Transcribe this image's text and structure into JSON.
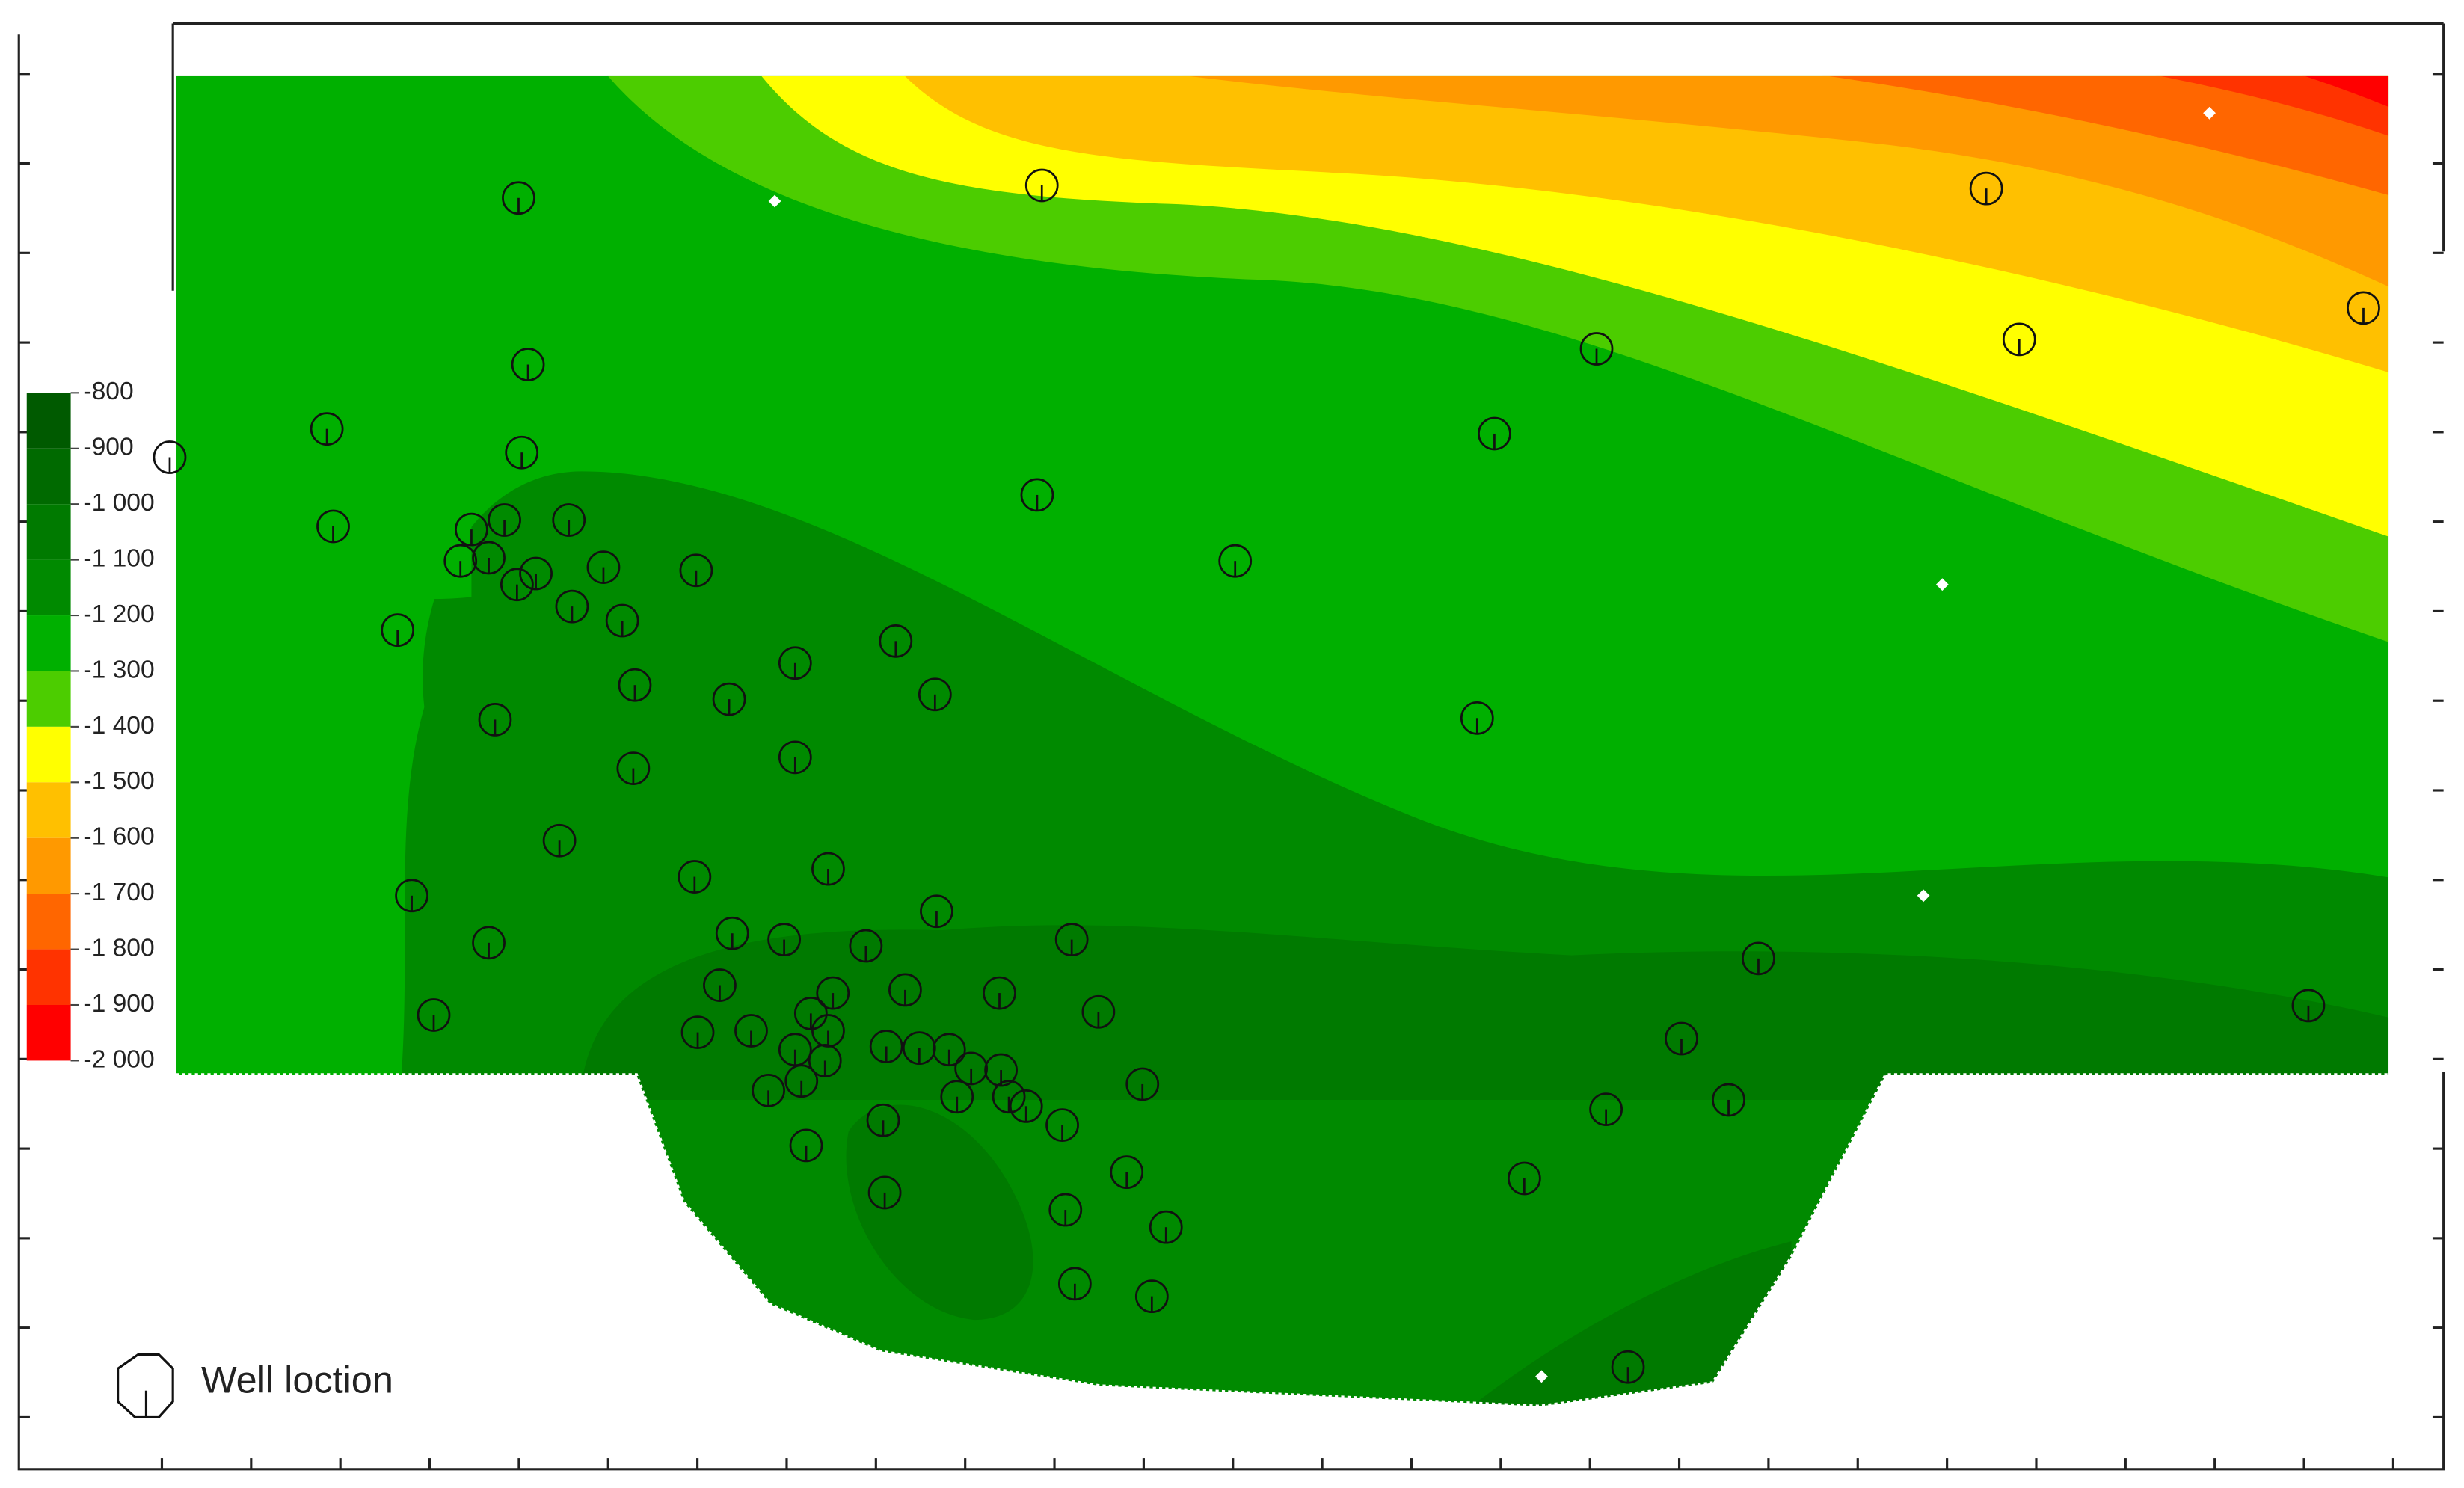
{
  "colorbar": {
    "ticks": [
      -800,
      -900,
      {
        "value": -1000,
        "label": "-1 000"
      },
      {
        "value": -1100,
        "label": "-1 100"
      },
      {
        "value": -1200,
        "label": "-1 200"
      },
      {
        "value": -1300,
        "label": "-1 300"
      },
      {
        "value": -1400,
        "label": "-1 400"
      },
      {
        "value": -1500,
        "label": "-1 500"
      },
      {
        "value": -1600,
        "label": "-1 600"
      },
      {
        "value": -1700,
        "label": "-1 700"
      },
      {
        "value": -1800,
        "label": "-1 800"
      },
      {
        "value": -1900,
        "label": "-1 900"
      },
      {
        "value": -2000,
        "label": "-2 000"
      }
    ],
    "colors": [
      "#005a00",
      "#006a00",
      "#007a00",
      "#008a00",
      "#00b000",
      "#4ccd00",
      "#ffff00",
      "#ffc000",
      "#ff9900",
      "#ff6600",
      "#ff3300",
      "#ff0000"
    ]
  },
  "legend": {
    "label": "Well loction"
  }
}
